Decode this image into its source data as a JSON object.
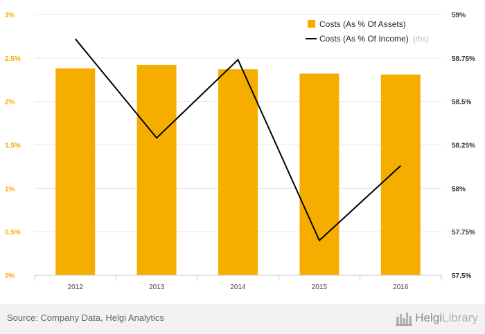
{
  "chart_data": {
    "type": "bar",
    "categories": [
      "2012",
      "2013",
      "2014",
      "2015",
      "2016"
    ],
    "series": [
      {
        "name": "Costs (As % Of Assets)",
        "type": "bar",
        "axis": "left",
        "color": "#f5ae00",
        "values": [
          2.38,
          2.42,
          2.37,
          2.32,
          2.31
        ]
      },
      {
        "name": "Costs (As % Of Income)",
        "legend_suffix": "(rhs)",
        "type": "line",
        "axis": "right",
        "color": "#000000",
        "values": [
          58.86,
          58.29,
          58.74,
          57.7,
          58.13
        ]
      }
    ],
    "left_axis": {
      "ylim": [
        0,
        3
      ],
      "ticks": [
        0,
        0.5,
        1,
        1.5,
        2,
        2.5,
        3
      ],
      "tick_labels": [
        "0%",
        "0.5%",
        "1%",
        "1.5%",
        "2%",
        "2.5%",
        "3%"
      ]
    },
    "right_axis": {
      "ylim": [
        57.5,
        59
      ],
      "ticks": [
        57.5,
        57.75,
        58,
        58.25,
        58.5,
        58.75,
        59
      ],
      "tick_labels": [
        "57.5%",
        "57.75%",
        "58%",
        "58.25%",
        "58.5%",
        "58.75%",
        "59%"
      ]
    },
    "grid": true,
    "legend_position": "top-right"
  },
  "footer": {
    "source": "Source: Company Data, Helgi Analytics",
    "brand_a": "Helgi",
    "brand_b": "Library",
    "brand_icon": "city-skyline-icon"
  }
}
